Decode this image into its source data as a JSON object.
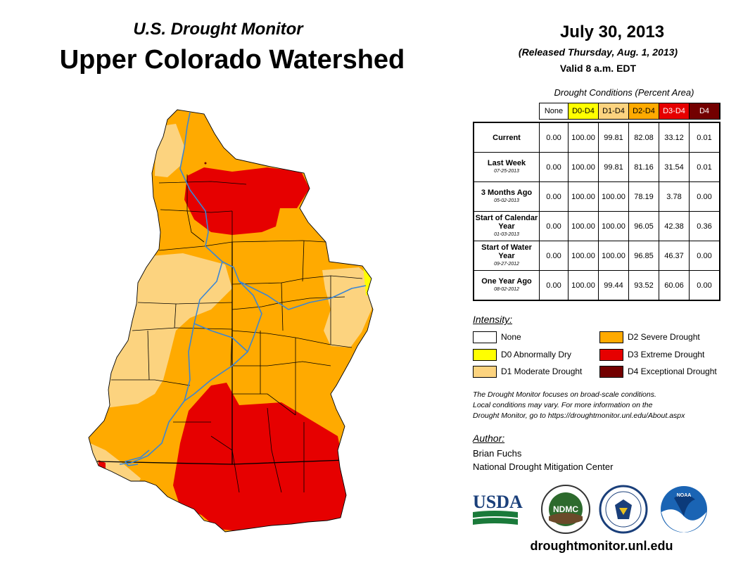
{
  "header": {
    "subtitle": "U.S. Drought Monitor",
    "title": "Upper Colorado Watershed",
    "date": "July 30, 2013",
    "released": "(Released Thursday, Aug. 1, 2013)",
    "valid": "Valid 8 a.m. EDT"
  },
  "table": {
    "title": "Drought Conditions (Percent Area)",
    "columns": [
      "None",
      "D0-D4",
      "D1-D4",
      "D2-D4",
      "D3-D4",
      "D4"
    ],
    "column_colors": [
      "#ffffff",
      "#ffff00",
      "#fcd37f",
      "#ffaa00",
      "#e60000",
      "#730000"
    ],
    "rows": [
      {
        "label": "Current",
        "date": "",
        "values": [
          "0.00",
          "100.00",
          "99.81",
          "82.08",
          "33.12",
          "0.01"
        ]
      },
      {
        "label": "Last Week",
        "date": "07-25-2013",
        "values": [
          "0.00",
          "100.00",
          "99.81",
          "81.16",
          "31.54",
          "0.01"
        ]
      },
      {
        "label": "3 Months Ago",
        "date": "05-02-2013",
        "values": [
          "0.00",
          "100.00",
          "100.00",
          "78.19",
          "3.78",
          "0.00"
        ]
      },
      {
        "label": "Start of Calendar Year",
        "date": "01-03-2013",
        "values": [
          "0.00",
          "100.00",
          "100.00",
          "96.05",
          "42.38",
          "0.36"
        ]
      },
      {
        "label": "Start of Water Year",
        "date": "09-27-2012",
        "values": [
          "0.00",
          "100.00",
          "100.00",
          "96.85",
          "46.37",
          "0.00"
        ]
      },
      {
        "label": "One Year Ago",
        "date": "08-02-2012",
        "values": [
          "0.00",
          "100.00",
          "99.44",
          "93.52",
          "60.06",
          "0.00"
        ]
      }
    ]
  },
  "legend": {
    "label": "Intensity:",
    "items": [
      {
        "label": "None",
        "color": "#ffffff"
      },
      {
        "label": "D0 Abnormally Dry",
        "color": "#ffff00"
      },
      {
        "label": "D1 Moderate Drought",
        "color": "#fcd37f"
      },
      {
        "label": "D2 Severe Drought",
        "color": "#ffaa00"
      },
      {
        "label": "D3 Extreme Drought",
        "color": "#e60000"
      },
      {
        "label": "D4 Exceptional Drought",
        "color": "#730000"
      }
    ]
  },
  "note": [
    "The Drought Monitor focuses on broad-scale conditions.",
    "Local conditions may vary. For more information on the",
    "Drought Monitor, go to https://droughtmonitor.unl.edu/About.aspx"
  ],
  "author": {
    "label": "Author:",
    "name": "Brian Fuchs",
    "org": "National Drought Mitigation Center"
  },
  "logos": {
    "usda": "USDA",
    "ndmc": "NDMC",
    "noaa": "NOAA"
  },
  "colors": {
    "river": "#3a86d4",
    "border": "#000000"
  },
  "url": "droughtmonitor.unl.edu"
}
